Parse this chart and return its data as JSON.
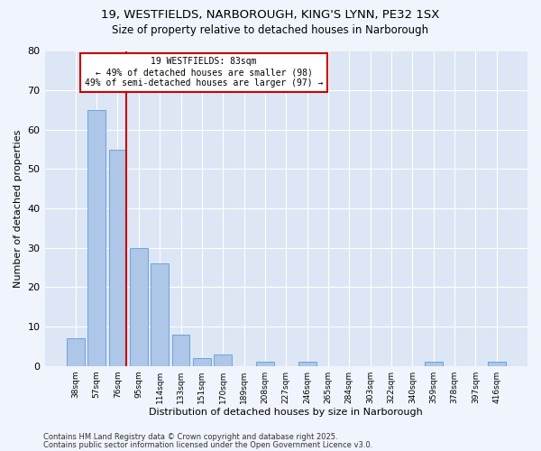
{
  "title1": "19, WESTFIELDS, NARBOROUGH, KING'S LYNN, PE32 1SX",
  "title2": "Size of property relative to detached houses in Narborough",
  "xlabel": "Distribution of detached houses by size in Narborough",
  "ylabel": "Number of detached properties",
  "categories": [
    "38sqm",
    "57sqm",
    "76sqm",
    "95sqm",
    "114sqm",
    "133sqm",
    "151sqm",
    "170sqm",
    "189sqm",
    "208sqm",
    "227sqm",
    "246sqm",
    "265sqm",
    "284sqm",
    "303sqm",
    "322sqm",
    "340sqm",
    "359sqm",
    "378sqm",
    "397sqm",
    "416sqm"
  ],
  "values": [
    7,
    65,
    55,
    30,
    26,
    8,
    2,
    3,
    0,
    1,
    0,
    1,
    0,
    0,
    0,
    0,
    0,
    1,
    0,
    0,
    1
  ],
  "bar_color": "#aec6e8",
  "bar_edge_color": "#5a9fd4",
  "red_line_index": 2,
  "annotation_title": "19 WESTFIELDS: 83sqm",
  "annotation_line1": "← 49% of detached houses are smaller (98)",
  "annotation_line2": "49% of semi-detached houses are larger (97) →",
  "annotation_box_color": "#ffffff",
  "annotation_box_edge": "#cc0000",
  "red_line_color": "#cc0000",
  "ylim": [
    0,
    80
  ],
  "yticks": [
    0,
    10,
    20,
    30,
    40,
    50,
    60,
    70,
    80
  ],
  "fig_background_color": "#f0f4fc",
  "plot_background_color": "#dce6f5",
  "grid_color": "#ffffff",
  "footer1": "Contains HM Land Registry data © Crown copyright and database right 2025.",
  "footer2": "Contains public sector information licensed under the Open Government Licence v3.0."
}
